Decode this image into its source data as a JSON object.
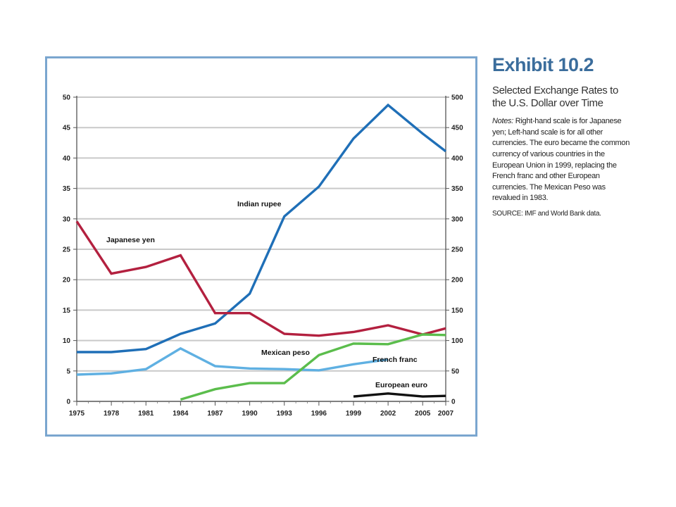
{
  "exhibit": {
    "title": "Exhibit 10.2",
    "subtitle": "Selected Exchange Rates to the U.S. Dollar over Time",
    "notes_label": "Notes:",
    "notes_text": "Right-hand scale is for Japanese yen; Left-hand scale is for all other currencies. The euro became the common currency of various countries in the European Union in 1999, replacing the French franc and other European currencies. The Mexican Peso was revalued in 1983.",
    "source": "SOURCE: IMF and World Bank data."
  },
  "chart_data": {
    "type": "line",
    "title": "",
    "xlabel": "",
    "ylabel": "",
    "categories": [
      "1975",
      "1978",
      "1981",
      "1984",
      "1987",
      "1990",
      "1993",
      "1996",
      "1999",
      "2002",
      "2005",
      "2007"
    ],
    "x_values": [
      1975,
      1978,
      1981,
      1984,
      1987,
      1990,
      1993,
      1996,
      1999,
      2002,
      2005,
      2007
    ],
    "ylim_left": [
      0,
      50
    ],
    "yticks_left": [
      "0",
      "5",
      "10",
      "15",
      "20",
      "25",
      "30",
      "35",
      "40",
      "45",
      "50"
    ],
    "ylim_right": [
      0,
      500
    ],
    "yticks_right": [
      "0",
      "50",
      "100",
      "150",
      "200",
      "250",
      "300",
      "350",
      "400",
      "450",
      "500"
    ],
    "grid": true,
    "series": [
      {
        "name": "Indian rupee",
        "axis": "left",
        "color": "#1f6fb7",
        "points": [
          [
            1975,
            8.1
          ],
          [
            1978,
            8.1
          ],
          [
            1981,
            8.6
          ],
          [
            1984,
            11.1
          ],
          [
            1987,
            12.8
          ],
          [
            1990,
            17.7
          ],
          [
            1993,
            30.4
          ],
          [
            1996,
            35.3
          ],
          [
            1999,
            43.2
          ],
          [
            2002,
            48.7
          ],
          [
            2005,
            44.0
          ],
          [
            2007,
            41.1
          ]
        ]
      },
      {
        "name": "Japanese yen",
        "axis": "right",
        "color": "#b3203f",
        "points": [
          [
            1975,
            296
          ],
          [
            1978,
            210
          ],
          [
            1981,
            221
          ],
          [
            1984,
            240
          ],
          [
            1987,
            145
          ],
          [
            1990,
            145
          ],
          [
            1993,
            111
          ],
          [
            1996,
            108
          ],
          [
            1999,
            114
          ],
          [
            2002,
            125
          ],
          [
            2005,
            110
          ],
          [
            2007,
            120
          ]
        ]
      },
      {
        "name": "French franc",
        "axis": "left",
        "color": "#5fb0e2",
        "points": [
          [
            1975,
            4.4
          ],
          [
            1978,
            4.6
          ],
          [
            1981,
            5.3
          ],
          [
            1984,
            8.7
          ],
          [
            1987,
            5.8
          ],
          [
            1990,
            5.4
          ],
          [
            1993,
            5.3
          ],
          [
            1996,
            5.1
          ],
          [
            1999,
            6.1
          ],
          [
            2002,
            6.9
          ]
        ]
      },
      {
        "name": "Mexican peso",
        "axis": "left",
        "color": "#5bbd4c",
        "points": [
          [
            1984,
            0.3
          ],
          [
            1987,
            2.0
          ],
          [
            1990,
            3.0
          ],
          [
            1993,
            3.0
          ],
          [
            1996,
            7.6
          ],
          [
            1999,
            9.5
          ],
          [
            2002,
            9.4
          ],
          [
            2005,
            11.0
          ],
          [
            2007,
            10.9
          ]
        ]
      },
      {
        "name": "European euro",
        "axis": "left",
        "color": "#111111",
        "points": [
          [
            1999,
            0.8
          ],
          [
            2002,
            1.3
          ],
          [
            2005,
            0.8
          ],
          [
            2007,
            0.9
          ]
        ]
      }
    ]
  }
}
